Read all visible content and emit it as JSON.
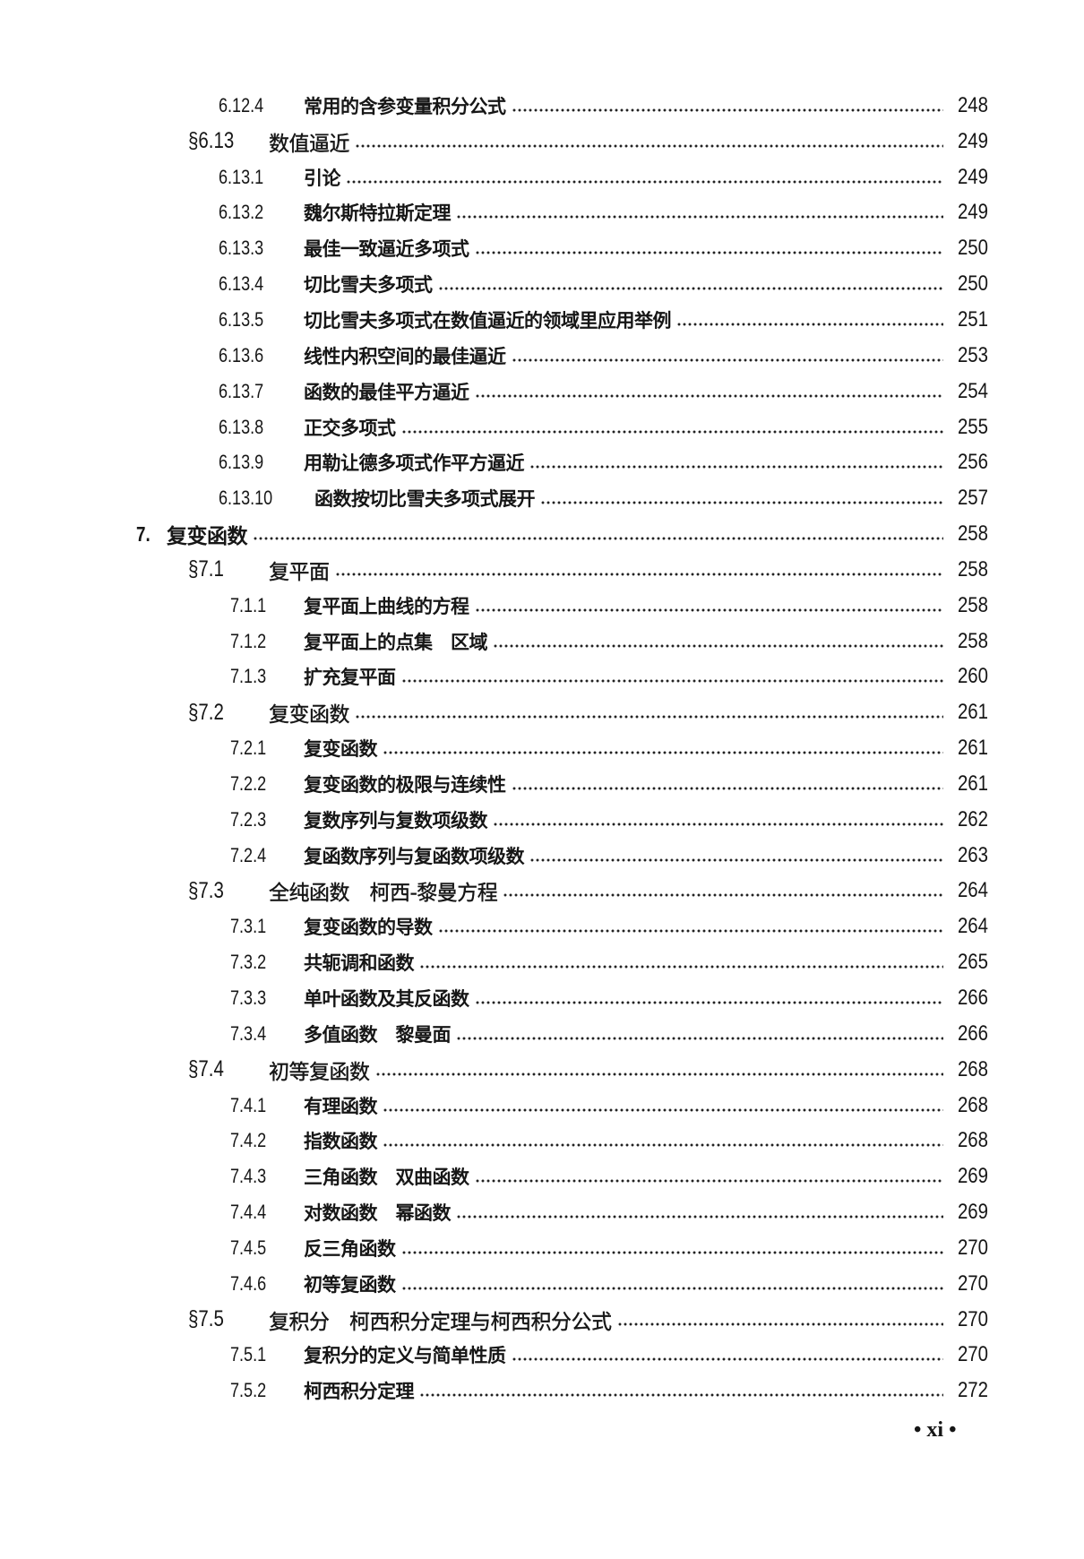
{
  "entries": [
    {
      "level": "sub",
      "num": "6.12.4",
      "title": "常用的含参变量积分公式",
      "page": "248"
    },
    {
      "level": "section",
      "num": "§6.13",
      "title": "数值逼近",
      "page": "249"
    },
    {
      "level": "sub",
      "num": "6.13.1",
      "title": "引论",
      "page": "249"
    },
    {
      "level": "sub",
      "num": "6.13.2",
      "title": "魏尔斯特拉斯定理",
      "page": "249"
    },
    {
      "level": "sub",
      "num": "6.13.3",
      "title": "最佳一致逼近多项式",
      "page": "250"
    },
    {
      "level": "sub",
      "num": "6.13.4",
      "title": "切比雪夫多项式",
      "page": "250"
    },
    {
      "level": "sub",
      "num": "6.13.5",
      "title": "切比雪夫多项式在数值逼近的领域里应用举例",
      "page": "251"
    },
    {
      "level": "sub",
      "num": "6.13.6",
      "title": "线性内积空间的最佳逼近",
      "page": "253"
    },
    {
      "level": "sub",
      "num": "6.13.7",
      "title": "函数的最佳平方逼近",
      "page": "254"
    },
    {
      "level": "sub",
      "num": "6.13.8",
      "title": "正交多项式",
      "page": "255"
    },
    {
      "level": "sub",
      "num": "6.13.9",
      "title": "用勒让德多项式作平方逼近",
      "page": "256"
    },
    {
      "level": "sub",
      "num": "6.13.10",
      "title": "函数按切比雪夫多项式展开",
      "page": "257"
    },
    {
      "level": "chapter",
      "num": "7.",
      "title": "复变函数",
      "page": "258"
    },
    {
      "level": "section",
      "num": "§7.1",
      "title": "复平面",
      "page": "258"
    },
    {
      "level": "sub",
      "num": "7.1.1",
      "title": "复平面上曲线的方程",
      "page": "258"
    },
    {
      "level": "sub",
      "num": "7.1.2",
      "title": "复平面上的点集　区域",
      "page": "258"
    },
    {
      "level": "sub",
      "num": "7.1.3",
      "title": "扩充复平面",
      "page": "260"
    },
    {
      "level": "section",
      "num": "§7.2",
      "title": "复变函数",
      "page": "261"
    },
    {
      "level": "sub",
      "num": "7.2.1",
      "title": "复变函数",
      "page": "261"
    },
    {
      "level": "sub",
      "num": "7.2.2",
      "title": "复变函数的极限与连续性",
      "page": "261"
    },
    {
      "level": "sub",
      "num": "7.2.3",
      "title": "复数序列与复数项级数",
      "page": "262"
    },
    {
      "level": "sub",
      "num": "7.2.4",
      "title": "复函数序列与复函数项级数",
      "page": "263"
    },
    {
      "level": "section",
      "num": "§7.3",
      "title": "全纯函数　柯西-黎曼方程",
      "page": "264"
    },
    {
      "level": "sub",
      "num": "7.3.1",
      "title": "复变函数的导数",
      "page": "264"
    },
    {
      "level": "sub",
      "num": "7.3.2",
      "title": "共轭调和函数",
      "page": "265"
    },
    {
      "level": "sub",
      "num": "7.3.3",
      "title": "单叶函数及其反函数",
      "page": "266"
    },
    {
      "level": "sub",
      "num": "7.3.4",
      "title": "多值函数　黎曼面",
      "page": "266"
    },
    {
      "level": "section",
      "num": "§7.4",
      "title": "初等复函数",
      "page": "268"
    },
    {
      "level": "sub",
      "num": "7.4.1",
      "title": "有理函数",
      "page": "268"
    },
    {
      "level": "sub",
      "num": "7.4.2",
      "title": "指数函数",
      "page": "268"
    },
    {
      "level": "sub",
      "num": "7.4.3",
      "title": "三角函数　双曲函数",
      "page": "269"
    },
    {
      "level": "sub",
      "num": "7.4.4",
      "title": "对数函数　幂函数",
      "page": "269"
    },
    {
      "level": "sub",
      "num": "7.4.5",
      "title": "反三角函数",
      "page": "270"
    },
    {
      "level": "sub",
      "num": "7.4.6",
      "title": "初等复函数",
      "page": "270"
    },
    {
      "level": "section",
      "num": "§7.5",
      "title": "复积分　柯西积分定理与柯西积分公式",
      "page": "270"
    },
    {
      "level": "sub",
      "num": "7.5.1",
      "title": "复积分的定义与简单性质",
      "page": "270"
    },
    {
      "level": "sub",
      "num": "7.5.2",
      "title": "柯西积分定理",
      "page": "272"
    }
  ],
  "footer": {
    "page_label": "• xi •"
  }
}
